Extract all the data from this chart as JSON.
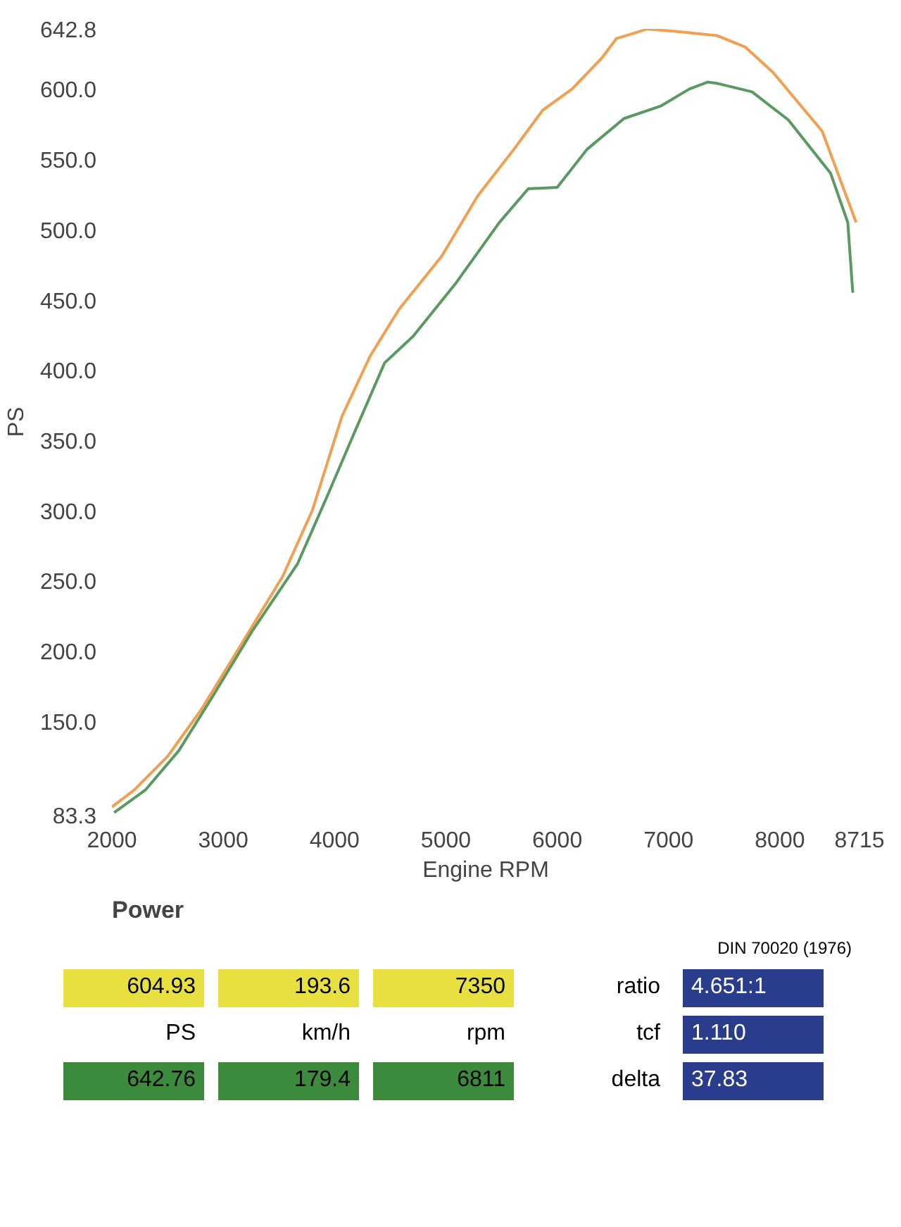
{
  "chart_data": {
    "type": "line",
    "title": "Power",
    "xlabel": "Engine RPM",
    "ylabel": "PS",
    "xlim": [
      2000,
      8715
    ],
    "xticks": [
      2000,
      3000,
      4000,
      5000,
      6000,
      7000,
      8000,
      8715
    ],
    "ylim": [
      83.3,
      642.8
    ],
    "yticks": [
      83.3,
      {
        "value": 150,
        "label": "150.0"
      },
      {
        "value": 200,
        "label": "200.0"
      },
      {
        "value": 250,
        "label": "250.0"
      },
      {
        "value": 300,
        "label": "300.0"
      },
      {
        "value": 350,
        "label": "350.0"
      },
      {
        "value": 400,
        "label": "400.0"
      },
      {
        "value": 450,
        "label": "450.0"
      },
      {
        "value": 500,
        "label": "500.0"
      },
      {
        "value": 550,
        "label": "550.0"
      },
      {
        "value": 600,
        "label": "600.0"
      },
      642.8
    ],
    "grid": false,
    "series": [
      {
        "color": "#f0a050",
        "x": [
          2000,
          2200,
          2500,
          2800,
          3133,
          3533,
          3800,
          4066,
          4320,
          4577,
          4962,
          5286,
          5610,
          5870,
          6133,
          6400,
          6533,
          6811,
          7062,
          7437,
          7687,
          7937,
          8380,
          8685
        ],
        "values": [
          89,
          101,
          125,
          158,
          201,
          253,
          300,
          367,
          410,
          443,
          481,
          524,
          557,
          585,
          600,
          622,
          636,
          642.7,
          641,
          638,
          630,
          612,
          570,
          505
        ]
      },
      {
        "color": "#5a9a60",
        "x": [
          2020,
          2300,
          2600,
          2900,
          3267,
          3667,
          3933,
          4192,
          4449,
          4705,
          5091,
          5480,
          5740,
          6000,
          6267,
          6600,
          6933,
          7187,
          7350,
          7437,
          7750,
          8076,
          8456,
          8610,
          8655
        ],
        "values": [
          85,
          101,
          129,
          167,
          215,
          262,
          310,
          358,
          405,
          424,
          462,
          505,
          529,
          530,
          557,
          579,
          588,
          600,
          604.9,
          604,
          598,
          578,
          540,
          505,
          455
        ]
      }
    ],
    "annotations": [
      "DIN 70020 (1976)",
      "604.93",
      "193.6",
      "7350",
      "PS",
      "km/h",
      "rpm",
      "642.76",
      "179.4",
      "6811",
      "ratio",
      "4.651:1",
      "tcf",
      "1.110",
      "delta",
      "37.83"
    ]
  }
}
